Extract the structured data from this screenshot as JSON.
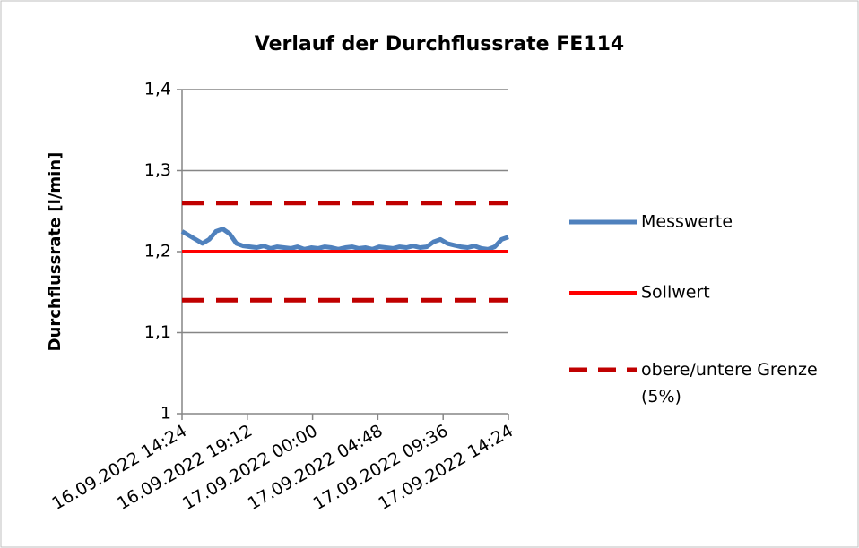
{
  "chart_data": {
    "type": "line",
    "title": "Verlauf der Durchflussrate FE114",
    "y_label": "Durchflussrate  [l/min]",
    "x": [
      "16.09.2022 14:24",
      "16.09.2022 14:54",
      "16.09.2022 15:24",
      "16.09.2022 15:54",
      "16.09.2022 16:24",
      "16.09.2022 16:54",
      "16.09.2022 17:24",
      "16.09.2022 17:54",
      "16.09.2022 18:24",
      "16.09.2022 18:54",
      "16.09.2022 19:24",
      "16.09.2022 19:54",
      "16.09.2022 20:24",
      "16.09.2022 20:54",
      "16.09.2022 21:24",
      "16.09.2022 21:54",
      "16.09.2022 22:24",
      "16.09.2022 22:54",
      "16.09.2022 23:24",
      "16.09.2022 23:54",
      "17.09.2022 00:24",
      "17.09.2022 00:54",
      "17.09.2022 01:24",
      "17.09.2022 01:54",
      "17.09.2022 02:24",
      "17.09.2022 02:54",
      "17.09.2022 03:24",
      "17.09.2022 03:54",
      "17.09.2022 04:24",
      "17.09.2022 04:54",
      "17.09.2022 05:24",
      "17.09.2022 05:54",
      "17.09.2022 06:24",
      "17.09.2022 06:54",
      "17.09.2022 07:24",
      "17.09.2022 07:54",
      "17.09.2022 08:24",
      "17.09.2022 08:54",
      "17.09.2022 09:24",
      "17.09.2022 09:54",
      "17.09.2022 10:24",
      "17.09.2022 10:54",
      "17.09.2022 11:24",
      "17.09.2022 11:54",
      "17.09.2022 12:24",
      "17.09.2022 12:54",
      "17.09.2022 13:24",
      "17.09.2022 13:54",
      "17.09.2022 14:24"
    ],
    "series": [
      {
        "name": "Messwerte",
        "color": "#4f81bd",
        "values": [
          1.225,
          1.22,
          1.215,
          1.21,
          1.215,
          1.225,
          1.228,
          1.222,
          1.21,
          1.207,
          1.206,
          1.205,
          1.207,
          1.204,
          1.206,
          1.205,
          1.204,
          1.206,
          1.203,
          1.205,
          1.204,
          1.206,
          1.205,
          1.203,
          1.205,
          1.206,
          1.204,
          1.205,
          1.203,
          1.206,
          1.205,
          1.204,
          1.206,
          1.205,
          1.207,
          1.205,
          1.206,
          1.212,
          1.215,
          1.21,
          1.208,
          1.206,
          1.205,
          1.207,
          1.204,
          1.203,
          1.206,
          1.215,
          1.218
        ]
      }
    ],
    "sollwert": {
      "name": "Sollwert",
      "color": "#ff0000",
      "value": 1.2
    },
    "limits": {
      "name": "obere/untere Grenze (5%)",
      "color": "#c00000",
      "values": [
        1.26,
        1.14
      ]
    },
    "xlim": [
      "16.09.2022 14:24",
      "17.09.2022 14:24"
    ],
    "xticks": [
      "16.09.2022 14:24",
      "16.09.2022 19:12",
      "17.09.2022 00:00",
      "17.09.2022 04:48",
      "17.09.2022 09:36",
      "17.09.2022 14:24"
    ],
    "ylim": [
      1,
      1.4
    ],
    "yticks": [
      1,
      {
        "value": 1.1,
        "label": "1,1"
      },
      {
        "value": 1.2,
        "label": "1,2"
      },
      {
        "value": 1.3,
        "label": "1,3"
      },
      {
        "value": 1.4,
        "label": "1,4"
      }
    ],
    "grid": true,
    "legend": "right"
  }
}
